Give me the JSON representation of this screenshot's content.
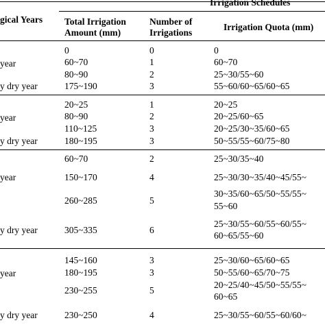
{
  "header": {
    "group_label": "Irrigation Schedules",
    "col_years": "gical Years",
    "col_total_1": "Total Irrigation",
    "col_total_2": "Amount (mm)",
    "col_number_1": "Number of",
    "col_number_2": "Irrigations",
    "col_quota": "Irrigation Quota (mm)"
  },
  "groups": [
    {
      "rows": [
        {
          "year": "",
          "total": "0",
          "number": "0",
          "quota": [
            "0"
          ]
        },
        {
          "year": "year",
          "total": "60~70",
          "number": "1",
          "quota": [
            "60~70"
          ]
        },
        {
          "year": "",
          "total": "80~90",
          "number": "2",
          "quota": [
            "25~30/55~60"
          ]
        },
        {
          "year": "y dry year",
          "total": "175~190",
          "number": "3",
          "quota": [
            "55~60/60~65/60~65"
          ]
        }
      ]
    },
    {
      "rows": [
        {
          "year": "",
          "total": "20~25",
          "number": "1",
          "quota": [
            "20~25"
          ]
        },
        {
          "year": "year",
          "total": "80~90",
          "number": "2",
          "quota": [
            "20~25/60~65"
          ]
        },
        {
          "year": "",
          "total": "110~125",
          "number": "3",
          "quota": [
            "20~25/30~35/60~65"
          ]
        },
        {
          "year": "y dry year",
          "total": "180~195",
          "number": "3",
          "quota": [
            "50~55/55~60/75~80"
          ]
        }
      ]
    },
    {
      "rows": [
        {
          "year": "",
          "total": "60~70",
          "number": "2",
          "quota": [
            "25~30/35~40"
          ]
        },
        {
          "year": "year",
          "total": "150~170",
          "number": "4",
          "quota": [
            "25~30/30~35/40~45/55~"
          ]
        },
        {
          "year": "",
          "total": "260~285",
          "number": "5",
          "quota": [
            "30~35/60~65/50~55/55~",
            "55~60"
          ]
        },
        {
          "year": "y dry year",
          "total": "305~335",
          "number": "6",
          "quota": [
            "25~30/55~60/55~60/55~",
            "60~65/55~60"
          ]
        }
      ]
    },
    {
      "rows": [
        {
          "year": "",
          "total": "145~160",
          "number": "3",
          "quota": [
            "25~30/60~65/60~65"
          ]
        },
        {
          "year": "year",
          "total": "180~195",
          "number": "3",
          "quota": [
            "50~55/60~65/70~75"
          ]
        },
        {
          "year": "",
          "total": "230~255",
          "number": "5",
          "quota": [
            "20~25/40~45/50~55/55~",
            "60~65"
          ]
        },
        {
          "year": "y dry year",
          "total": "230~250",
          "number": "4",
          "quota": [
            "25~30/55~60/55~60/60~"
          ]
        }
      ]
    }
  ]
}
